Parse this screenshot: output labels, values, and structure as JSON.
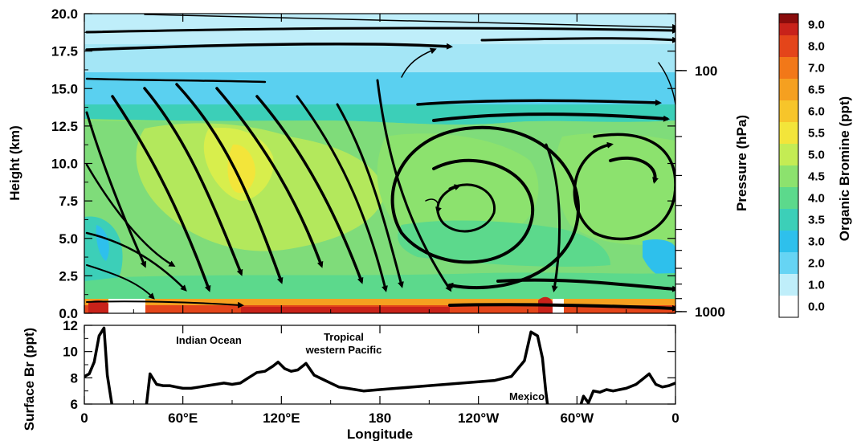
{
  "chart_data": [
    {
      "type": "heatmap",
      "title": "",
      "xlabel": "",
      "ylabel": "Height (km)",
      "y2label": "Pressure (hPa)",
      "xlim": [
        0,
        360
      ],
      "ylim": [
        0,
        20
      ],
      "yticks": [
        "0.0",
        "2.5",
        "5.0",
        "7.5",
        "10.0",
        "12.5",
        "15.0",
        "17.5",
        "20.0"
      ],
      "y2ticks": [
        "100",
        "1000"
      ],
      "overlay": "streamlines (wind vectors)",
      "colorbar": {
        "label": "Organic Bromine (ppt)",
        "levels": [
          "0.0",
          "1.0",
          "2.0",
          "3.0",
          "3.5",
          "4.0",
          "4.5",
          "5.0",
          "5.5",
          "6.0",
          "6.5",
          "7.0",
          "8.0",
          "9.0"
        ],
        "colors": [
          "#ffffff",
          "#bfeefa",
          "#66d4f4",
          "#2ec0ec",
          "#3ccfb8",
          "#5cd98c",
          "#8ce26e",
          "#c4ec54",
          "#f3e53a",
          "#f7c52a",
          "#f5a020",
          "#f27818",
          "#e4451a",
          "#c8221a",
          "#8a0c0c"
        ]
      },
      "grid": false
    },
    {
      "type": "line",
      "title": "",
      "xlabel": "Longitude",
      "ylabel": "Surface Br (ppt)",
      "xlim": [
        0,
        360
      ],
      "ylim": [
        6,
        12
      ],
      "xtick_labels": [
        "0",
        "60°E",
        "120°E",
        "180",
        "120°W",
        "60°W",
        "0"
      ],
      "yticks": [
        "6",
        "8",
        "10",
        "12"
      ],
      "annotations": [
        "Indian Ocean",
        "Tropical",
        "western Pacific",
        "Mexico"
      ],
      "x": [
        0,
        3,
        6,
        9,
        12,
        14,
        18,
        37,
        40,
        44,
        48,
        52,
        56,
        60,
        65,
        70,
        75,
        80,
        85,
        90,
        95,
        100,
        105,
        110,
        115,
        118,
        122,
        126,
        130,
        135,
        140,
        145,
        150,
        155,
        160,
        165,
        170,
        180,
        190,
        200,
        210,
        220,
        230,
        240,
        250,
        260,
        268,
        272,
        276,
        279,
        281,
        283,
        286,
        300,
        304,
        307,
        310,
        314,
        318,
        322,
        326,
        330,
        336,
        340,
        344,
        348,
        352,
        356,
        360
      ],
      "y": [
        8.1,
        8.3,
        9.2,
        11.2,
        11.8,
        8.2,
        5.0,
        5.0,
        8.3,
        7.5,
        7.4,
        7.4,
        7.3,
        7.2,
        7.2,
        7.3,
        7.4,
        7.5,
        7.6,
        7.5,
        7.6,
        8.0,
        8.4,
        8.5,
        8.9,
        9.2,
        8.7,
        8.5,
        8.6,
        9.1,
        8.2,
        7.9,
        7.6,
        7.3,
        7.2,
        7.1,
        7.0,
        7.1,
        7.2,
        7.3,
        7.4,
        7.5,
        7.6,
        7.7,
        7.8,
        8.1,
        9.3,
        11.5,
        11.2,
        9.5,
        7.0,
        5.0,
        5.0,
        5.0,
        6.6,
        6.1,
        7.0,
        6.9,
        7.1,
        7.0,
        7.1,
        7.2,
        7.5,
        7.9,
        8.3,
        7.5,
        7.3,
        7.4,
        7.6
      ]
    }
  ]
}
